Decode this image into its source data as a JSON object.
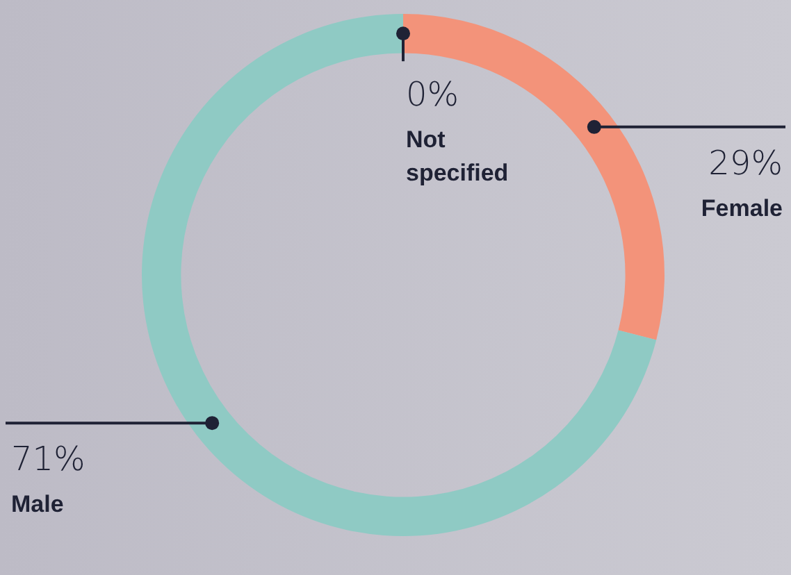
{
  "chart_data": {
    "type": "donut",
    "categories": [
      "Not specified",
      "Female",
      "Male"
    ],
    "values": [
      0,
      29,
      71
    ],
    "colors": [
      "#9aa3b5",
      "#f3937a",
      "#8fcac4"
    ],
    "value_labels": [
      "0%",
      "29%",
      "71%"
    ],
    "legend": false
  }
}
